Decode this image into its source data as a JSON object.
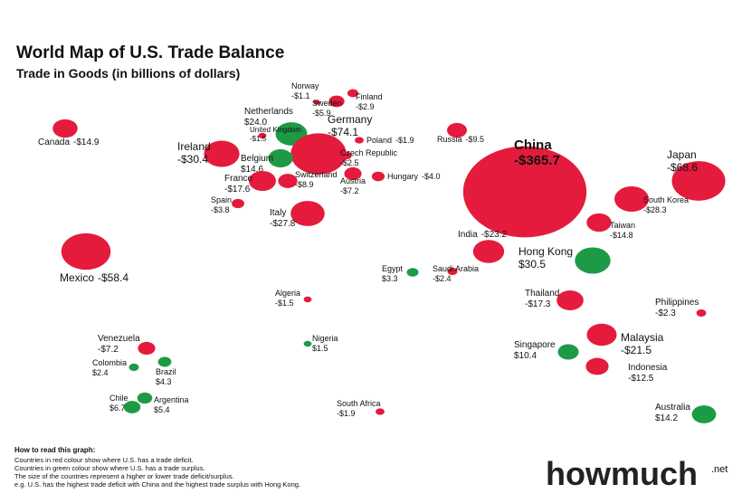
{
  "header": {
    "title": "World Map of U.S. Trade Balance",
    "subtitle": "Trade in Goods (in billions of dollars)"
  },
  "colors": {
    "deficit": "#e41b3c",
    "surplus": "#1e9a46"
  },
  "countries": [
    {
      "name": "Canada",
      "value": -14.9,
      "value_label": "-$14.9"
    },
    {
      "name": "Ireland",
      "value": -30.4,
      "value_label": "-$30.4"
    },
    {
      "name": "Norway",
      "value": -1.1,
      "value_label": "-$1.1"
    },
    {
      "name": "Sweden",
      "value": -5.9,
      "value_label": "-$5.9"
    },
    {
      "name": "Finland",
      "value": -2.9,
      "value_label": "-$2.9"
    },
    {
      "name": "Netherlands",
      "value": 24.0,
      "value_label": "$24.0"
    },
    {
      "name": "United Kingdom",
      "value": -1.5,
      "value_label": "-$1.5"
    },
    {
      "name": "Germany",
      "value": -74.1,
      "value_label": "-$74.1"
    },
    {
      "name": "Belgium",
      "value": 14.6,
      "value_label": "$14.6"
    },
    {
      "name": "Poland",
      "value": -1.9,
      "value_label": "-$1.9"
    },
    {
      "name": "Czech Republic",
      "value": -2.5,
      "value_label": "-$2.5"
    },
    {
      "name": "France",
      "value": -17.6,
      "value_label": "-$17.6"
    },
    {
      "name": "Switzerland",
      "value": -8.9,
      "value_label": "-$8.9"
    },
    {
      "name": "Austria",
      "value": -7.2,
      "value_label": "-$7.2"
    },
    {
      "name": "Hungary",
      "value": -4.0,
      "value_label": "-$4.0"
    },
    {
      "name": "Spain",
      "value": -3.8,
      "value_label": "-$3.8"
    },
    {
      "name": "Italy",
      "value": -27.8,
      "value_label": "-$27.8"
    },
    {
      "name": "Russia",
      "value": -9.5,
      "value_label": "-$9.5"
    },
    {
      "name": "China",
      "value": -365.7,
      "value_label": "-$365.7"
    },
    {
      "name": "Japan",
      "value": -68.6,
      "value_label": "-$68.6"
    },
    {
      "name": "South Korea",
      "value": -28.3,
      "value_label": "-$28.3"
    },
    {
      "name": "Taiwan",
      "value": -14.8,
      "value_label": "-$14.8"
    },
    {
      "name": "India",
      "value": -23.2,
      "value_label": "-$23.2"
    },
    {
      "name": "Hong Kong",
      "value": 30.5,
      "value_label": "$30.5"
    },
    {
      "name": "Saudi Arabia",
      "value": -2.4,
      "value_label": "-$2.4"
    },
    {
      "name": "Egypt",
      "value": 3.3,
      "value_label": "$3.3"
    },
    {
      "name": "Mexico",
      "value": -58.4,
      "value_label": "-$58.4"
    },
    {
      "name": "Algeria",
      "value": -1.5,
      "value_label": "-$1.5"
    },
    {
      "name": "Thailand",
      "value": -17.3,
      "value_label": "-$17.3"
    },
    {
      "name": "Philippines",
      "value": -2.3,
      "value_label": "-$2.3"
    },
    {
      "name": "Venezuela",
      "value": -7.2,
      "value_label": "-$7.2"
    },
    {
      "name": "Nigeria",
      "value": 1.5,
      "value_label": "$1.5"
    },
    {
      "name": "Malaysia",
      "value": -21.5,
      "value_label": "-$21.5"
    },
    {
      "name": "Colombia",
      "value": 2.4,
      "value_label": "$2.4"
    },
    {
      "name": "Brazil",
      "value": 4.3,
      "value_label": "$4.3"
    },
    {
      "name": "Singapore",
      "value": 10.4,
      "value_label": "$10.4"
    },
    {
      "name": "Indonesia",
      "value": -12.5,
      "value_label": "-$12.5"
    },
    {
      "name": "Chile",
      "value": 6.7,
      "value_label": "$6.7"
    },
    {
      "name": "Argentina",
      "value": 5.4,
      "value_label": "$5.4"
    },
    {
      "name": "South Africa",
      "value": -1.9,
      "value_label": "-$1.9"
    },
    {
      "name": "Australia",
      "value": 14.2,
      "value_label": "$14.2"
    }
  ],
  "footer": {
    "heading": "How to read this graph:",
    "lines": [
      "Countries in red colour show where U.S. has a trade deficit.",
      "Countries in green colour show where U.S. has a trade surplus.",
      "The size of the countries represent a higher or lower trade deficit/surplus.",
      "e.g. U.S. has the highest trade deficit with China and the highest trade surplus with Hong Kong."
    ]
  },
  "logo": {
    "name": "howmuch",
    "suffix": ".net"
  }
}
